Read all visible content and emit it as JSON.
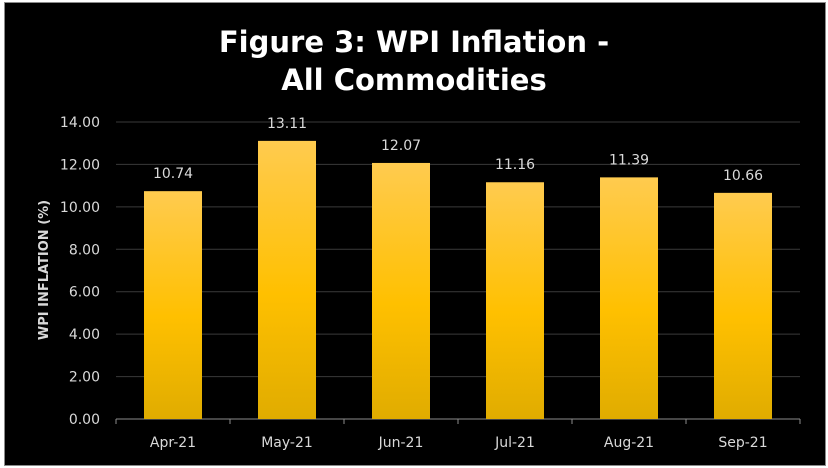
{
  "chart_data": {
    "type": "bar",
    "title_lines": [
      "Figure 3: WPI Inflation -",
      "All Commodities"
    ],
    "xlabel": "",
    "ylabel": "WPI INFLATION (%)",
    "categories": [
      "Apr-21",
      "May-21",
      "Jun-21",
      "Jul-21",
      "Aug-21",
      "Sep-21"
    ],
    "values": [
      10.74,
      13.11,
      12.07,
      11.16,
      11.39,
      10.66
    ],
    "data_labels": [
      "10.74",
      "13.11",
      "12.07",
      "11.16",
      "11.39",
      "10.66"
    ],
    "ylim": [
      0,
      14
    ],
    "yticks": [
      "0.00",
      "2.00",
      "4.00",
      "6.00",
      "8.00",
      "10.00",
      "12.00",
      "14.00"
    ],
    "grid": true,
    "legend": "none",
    "colors": {
      "background": "#000000",
      "bar_top": "#FFCB4F",
      "bar_mid": "#FFC000",
      "bar_bottom": "#E0AC00",
      "grid": "#3a3a3a",
      "text": "#d9d9d9",
      "title": "#ffffff"
    }
  }
}
